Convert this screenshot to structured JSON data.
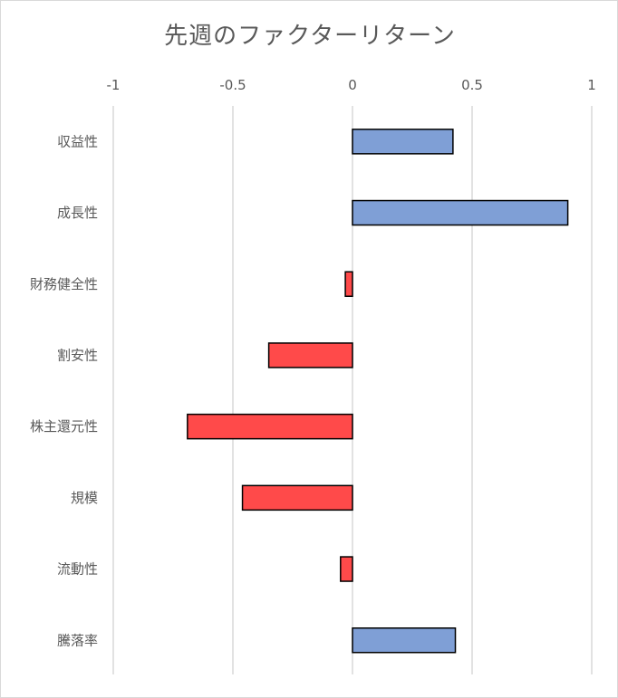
{
  "chart_data": {
    "type": "bar",
    "orientation": "horizontal",
    "title": "先週のファクターリターン",
    "categories": [
      "収益性",
      "成長性",
      "財務健全性",
      "割安性",
      "株主還元性",
      "規模",
      "流動性",
      "騰落率"
    ],
    "values": [
      0.42,
      0.9,
      -0.03,
      -0.35,
      -0.69,
      -0.46,
      -0.05,
      0.43
    ],
    "xlim": [
      -1,
      1
    ],
    "xticks": [
      -1,
      -0.5,
      0,
      0.5,
      1
    ],
    "xtick_labels": [
      "-1",
      "-0.5",
      "0",
      "0.5",
      "1"
    ],
    "x_axis_position": "top",
    "grid": true,
    "legend": "none",
    "colors": {
      "positive": "#7f9fd6",
      "negative": "#ff4a4a",
      "edge": "#000000",
      "grid": "#d9d9d9",
      "text": "#595959"
    }
  }
}
